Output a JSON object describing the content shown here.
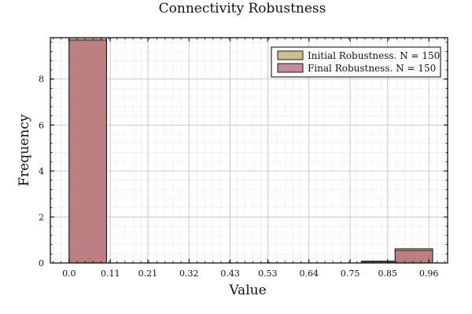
{
  "chart_data": {
    "type": "histogram",
    "title": "Connectivity Robustness",
    "xlabel": "Value",
    "ylabel": "Frequency",
    "xlim": [
      -0.05,
      1.01
    ],
    "ylim": [
      0,
      9.8
    ],
    "x_ticks": [
      0.0,
      0.11,
      0.21,
      0.32,
      0.43,
      0.53,
      0.64,
      0.75,
      0.85,
      0.96
    ],
    "x_tick_labels": [
      "0.0",
      "0.11",
      "0.21",
      "0.32",
      "0.43",
      "0.53",
      "0.64",
      "0.75",
      "0.85",
      "0.96"
    ],
    "y_ticks": [
      0,
      2,
      4,
      6,
      8
    ],
    "y_tick_labels": [
      "0",
      "2",
      "4",
      "6",
      "8"
    ],
    "grid": true,
    "legend_position": "top-right",
    "series": [
      {
        "name": "Initial Robustness. N = 150",
        "color": "#b9b074",
        "bins": [
          {
            "x0": 0.0,
            "x1": 0.1,
            "value": 9.8
          },
          {
            "x0": 0.78,
            "x1": 0.87,
            "value": 0.08
          },
          {
            "x0": 0.87,
            "x1": 0.97,
            "value": 0.62
          }
        ]
      },
      {
        "name": "Final Robustness. N = 150",
        "color": "#b66e7c",
        "bins": [
          {
            "x0": 0.0,
            "x1": 0.1,
            "value": 9.7
          },
          {
            "x0": 0.78,
            "x1": 0.87,
            "value": 0.06
          },
          {
            "x0": 0.87,
            "x1": 0.97,
            "value": 0.55
          }
        ]
      }
    ]
  }
}
